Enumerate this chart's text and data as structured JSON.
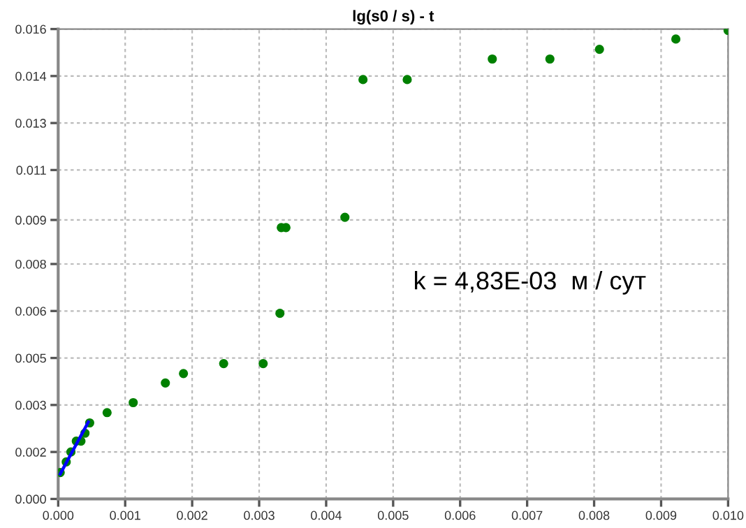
{
  "chart_data": {
    "type": "scatter",
    "title": "lg(s0 / s) - t",
    "xlim": [
      0,
      0.01
    ],
    "ylim": [
      0,
      0.016
    ],
    "xticks": [
      {
        "value": 0,
        "label": "0.000"
      },
      {
        "value": 0.001,
        "label": "0.001"
      },
      {
        "value": 0.002,
        "label": "0.002"
      },
      {
        "value": 0.003,
        "label": "0.003"
      },
      {
        "value": 0.004,
        "label": "0.004"
      },
      {
        "value": 0.005,
        "label": "0.005"
      },
      {
        "value": 0.006,
        "label": "0.006"
      },
      {
        "value": 0.007,
        "label": "0.007"
      },
      {
        "value": 0.008,
        "label": "0.008"
      },
      {
        "value": 0.009,
        "label": "0.009"
      },
      {
        "value": 0.01,
        "label": "0.010"
      }
    ],
    "yticks": [
      {
        "value": 0,
        "label": "0.000"
      },
      {
        "value": 0.0016,
        "label": "0.002"
      },
      {
        "value": 0.0032,
        "label": "0.003"
      },
      {
        "value": 0.0048,
        "label": "0.005"
      },
      {
        "value": 0.0064,
        "label": "0.006"
      },
      {
        "value": 0.008,
        "label": "0.008"
      },
      {
        "value": 0.0095,
        "label": "0.009"
      },
      {
        "value": 0.0112,
        "label": "0.011"
      },
      {
        "value": 0.0128,
        "label": "0.013"
      },
      {
        "value": 0.0144,
        "label": "0.014"
      },
      {
        "value": 0.016,
        "label": "0.016"
      }
    ],
    "grid": true,
    "marker": "circle",
    "series": [
      {
        "color": "#008000",
        "x": [
          3e-05,
          0.00012,
          0.00019,
          0.00027,
          0.00034,
          0.0004,
          0.00047,
          0.00073,
          0.00112,
          0.0016,
          0.00187,
          0.00247,
          0.00306,
          0.00331,
          0.00333,
          0.0034,
          0.00428,
          0.00455,
          0.00521,
          0.00648,
          0.00734,
          0.00808,
          0.00922,
          0.01
        ],
        "values": [
          0.0009,
          0.00126,
          0.0016,
          0.00197,
          0.00197,
          0.00224,
          0.00259,
          0.00294,
          0.00328,
          0.00395,
          0.00427,
          0.00461,
          0.00461,
          0.00632,
          0.00924,
          0.00924,
          0.00959,
          0.01428,
          0.01428,
          0.01498,
          0.01498,
          0.01531,
          0.01566,
          0.01595
        ]
      },
      {
        "type": "line",
        "marker": "none",
        "color": "#0000ff",
        "x": [
          3e-05,
          0.00045
        ],
        "values": [
          0.00085,
          0.00262
        ]
      }
    ],
    "annotations": [
      "k = 4,83E-03  м / сут"
    ]
  }
}
